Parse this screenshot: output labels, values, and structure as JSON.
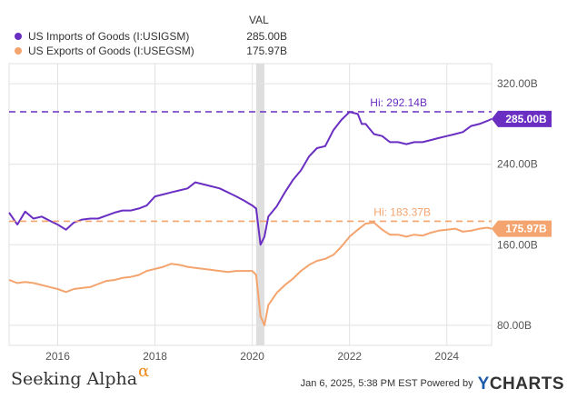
{
  "legend": {
    "header": "VAL",
    "series": [
      {
        "name": "US Imports of Goods (I:USIGSM)",
        "value": "285.00B",
        "color": "#6a2fc2"
      },
      {
        "name": "US Exports of Goods (I:USEGSM)",
        "value": "175.97B",
        "color": "#f4a46e"
      }
    ]
  },
  "footer": {
    "brand": "Seeking Alpha",
    "brand_symbol": "α",
    "timestamp": "Jan 6, 2025, 5:38 PM EST  Powered by",
    "provider_y": "Y",
    "provider_rest": "CHARTS"
  },
  "chart_data": {
    "type": "line",
    "x_start": "2015-01",
    "x_end": "2024-11",
    "xlim": [
      2015.0,
      2024.92
    ],
    "ylim": [
      60,
      340
    ],
    "y_ticks": [
      80,
      160,
      240,
      320
    ],
    "y_tick_labels": [
      "80.00B",
      "160.00B",
      "240.00B",
      "320.00B"
    ],
    "x_ticks": [
      2016,
      2018,
      2020,
      2022,
      2024
    ],
    "x_tick_labels": [
      "2016",
      "2018",
      "2020",
      "2022",
      "2024"
    ],
    "recession_shade": [
      2020.08,
      2020.25
    ],
    "grid": true,
    "series": [
      {
        "name": "US Imports of Goods (I:USIGSM)",
        "color": "#6a2fc2",
        "last_label": "285.00B",
        "hi_label": "Hi: 292.14B",
        "hi_value": 292.14,
        "x": [
          2015.0,
          2015.17,
          2015.33,
          2015.5,
          2015.67,
          2015.83,
          2016.0,
          2016.17,
          2016.33,
          2016.5,
          2016.67,
          2016.83,
          2017.0,
          2017.17,
          2017.33,
          2017.5,
          2017.67,
          2017.83,
          2018.0,
          2018.17,
          2018.33,
          2018.5,
          2018.67,
          2018.83,
          2019.0,
          2019.17,
          2019.33,
          2019.5,
          2019.67,
          2019.83,
          2020.0,
          2020.08,
          2020.17,
          2020.25,
          2020.33,
          2020.5,
          2020.67,
          2020.83,
          2021.0,
          2021.17,
          2021.33,
          2021.5,
          2021.67,
          2021.83,
          2022.0,
          2022.17,
          2022.25,
          2022.33,
          2022.5,
          2022.67,
          2022.83,
          2023.0,
          2023.17,
          2023.33,
          2023.5,
          2023.67,
          2023.83,
          2024.0,
          2024.17,
          2024.33,
          2024.5,
          2024.67,
          2024.83,
          2024.92
        ],
        "values": [
          192,
          180,
          193,
          186,
          188,
          184,
          180,
          175,
          182,
          185,
          186,
          186,
          189,
          192,
          194,
          194,
          196,
          199,
          208,
          210,
          212,
          214,
          216,
          222,
          220,
          218,
          216,
          212,
          208,
          204,
          199,
          196,
          160,
          168,
          188,
          198,
          212,
          224,
          234,
          248,
          256,
          258,
          274,
          284,
          292,
          290,
          280,
          280,
          270,
          268,
          262,
          262,
          260,
          262,
          262,
          264,
          266,
          268,
          270,
          272,
          278,
          280,
          283,
          285
        ]
      },
      {
        "name": "US Exports of Goods (I:USEGSM)",
        "color": "#f4a46e",
        "last_label": "175.97B",
        "hi_label": "Hi: 183.37B",
        "hi_value": 183.37,
        "x": [
          2015.0,
          2015.17,
          2015.33,
          2015.5,
          2015.67,
          2015.83,
          2016.0,
          2016.17,
          2016.33,
          2016.5,
          2016.67,
          2016.83,
          2017.0,
          2017.17,
          2017.33,
          2017.5,
          2017.67,
          2017.83,
          2018.0,
          2018.17,
          2018.33,
          2018.5,
          2018.67,
          2018.83,
          2019.0,
          2019.17,
          2019.33,
          2019.5,
          2019.67,
          2019.83,
          2020.0,
          2020.08,
          2020.17,
          2020.25,
          2020.33,
          2020.5,
          2020.67,
          2020.83,
          2021.0,
          2021.17,
          2021.33,
          2021.5,
          2021.67,
          2021.83,
          2022.0,
          2022.17,
          2022.33,
          2022.5,
          2022.67,
          2022.83,
          2023.0,
          2023.17,
          2023.33,
          2023.5,
          2023.67,
          2023.83,
          2024.0,
          2024.17,
          2024.33,
          2024.5,
          2024.67,
          2024.83,
          2024.92
        ],
        "values": [
          125,
          122,
          123,
          122,
          120,
          118,
          116,
          113,
          116,
          117,
          118,
          121,
          124,
          125,
          127,
          128,
          130,
          134,
          136,
          138,
          141,
          140,
          138,
          137,
          136,
          135,
          134,
          133,
          134,
          134,
          134,
          130,
          89,
          80,
          100,
          112,
          120,
          126,
          134,
          140,
          144,
          146,
          150,
          158,
          168,
          175,
          181,
          182,
          175,
          170,
          170,
          168,
          170,
          169,
          172,
          174,
          175,
          176,
          173,
          174,
          176,
          177,
          176
        ]
      }
    ]
  }
}
